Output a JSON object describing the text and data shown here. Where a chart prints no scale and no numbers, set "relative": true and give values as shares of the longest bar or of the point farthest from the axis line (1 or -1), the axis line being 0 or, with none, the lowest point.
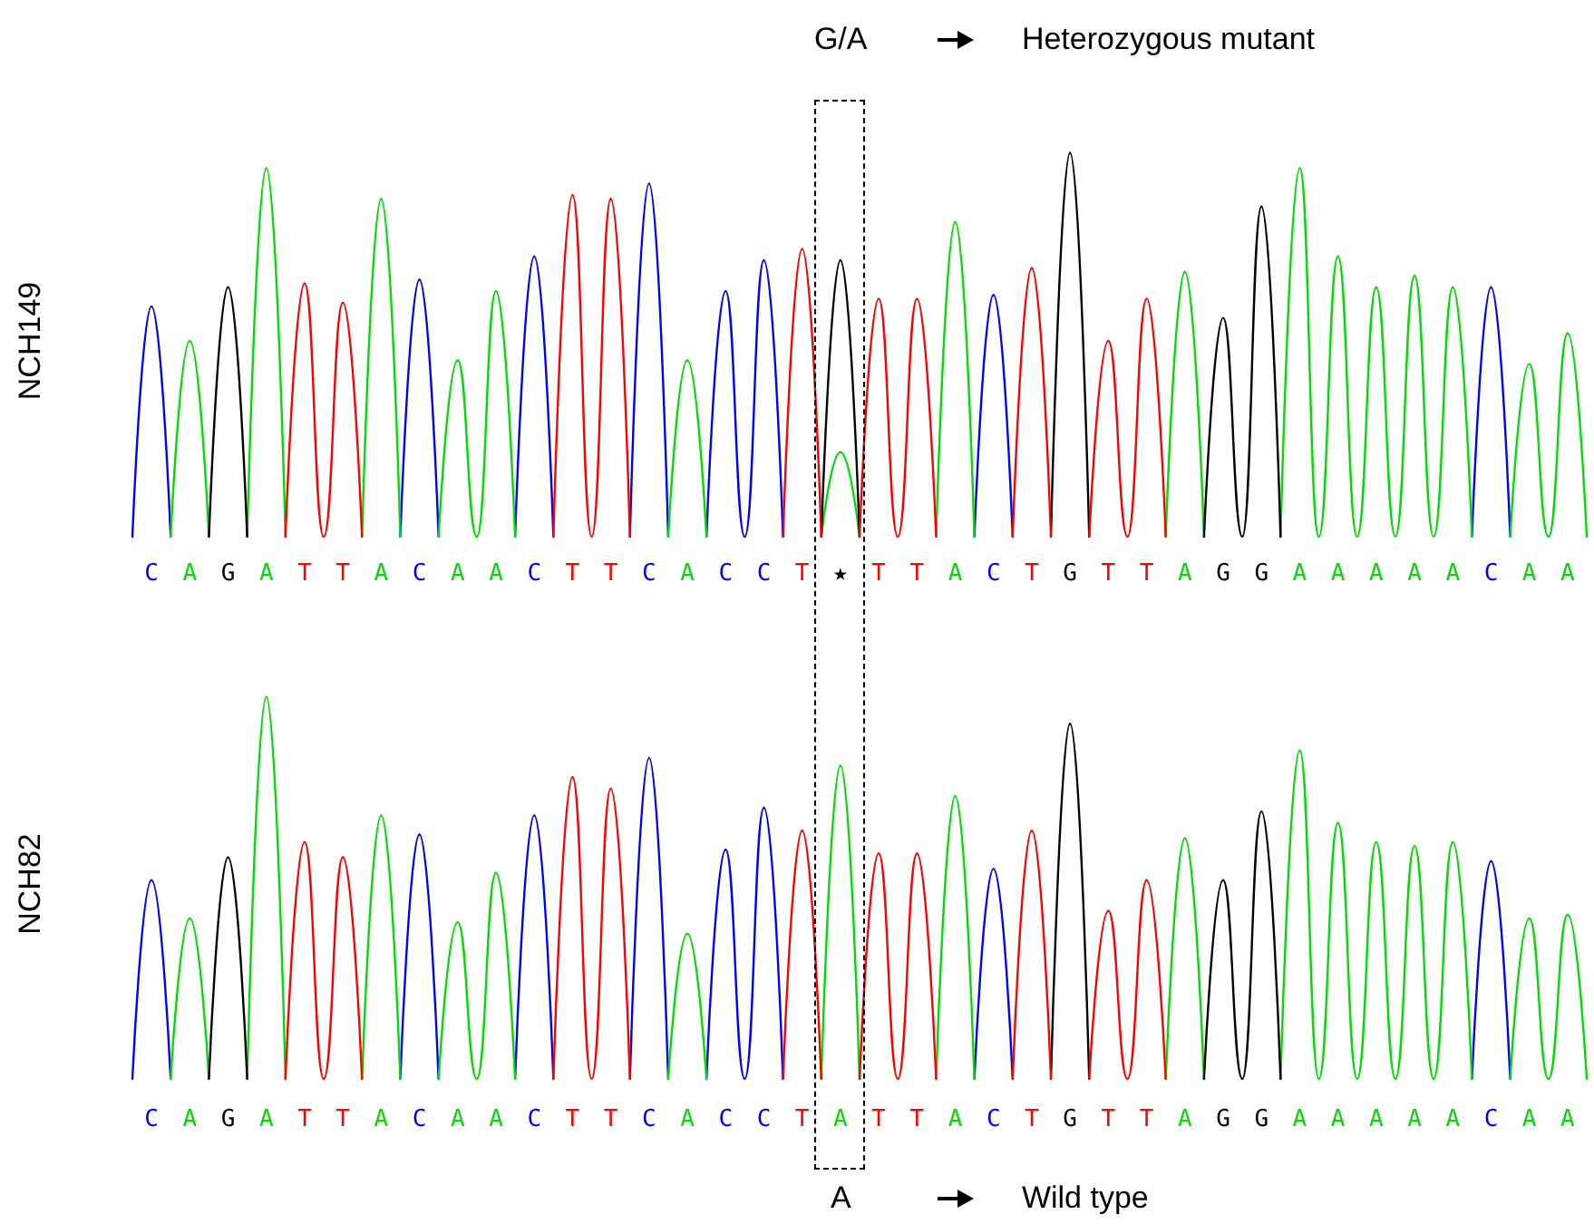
{
  "chart_data": [
    {
      "type": "line",
      "ylabel": "NCH149",
      "relative": true,
      "tick_labels": "x",
      "marker": "none",
      "line_style": "solid",
      "categories": [
        null,
        "C",
        null,
        "A",
        null,
        "G",
        null,
        "A",
        null,
        "T",
        null,
        "T",
        null,
        "A",
        null,
        "C",
        null,
        "A",
        null,
        "A",
        null,
        "C",
        null,
        "T",
        null,
        "T",
        null,
        "C",
        null,
        "A",
        null,
        "C",
        null,
        "C",
        null,
        "T",
        null,
        "★",
        null,
        "T",
        null,
        "T",
        null,
        "A",
        null,
        "C",
        null,
        "T",
        null,
        "G",
        null,
        "T",
        null,
        "T",
        null,
        "A",
        null,
        "G",
        null,
        "G",
        null,
        "A",
        null,
        "A",
        null,
        "A",
        null,
        "A",
        null,
        "A",
        null,
        "C",
        null,
        "A",
        null,
        "A",
        null
      ],
      "annotations": [
        "G/A",
        "Heterozygous mutant"
      ],
      "series": [
        {
          "color": "#0000ff",
          "values": [
            0,
            0.6,
            0,
            null,
            null,
            null,
            null,
            null,
            null,
            null,
            null,
            null,
            null,
            null,
            0,
            0.67,
            0,
            null,
            null,
            null,
            0,
            0.73,
            0,
            null,
            null,
            null,
            0,
            0.92,
            0,
            null,
            0,
            0.64,
            0,
            0.72,
            0,
            null,
            null,
            null,
            null,
            null,
            null,
            null,
            null,
            null,
            0,
            0.63,
            0,
            null,
            null,
            null,
            null,
            null,
            null,
            null,
            null,
            null,
            null,
            null,
            null,
            null,
            null,
            null,
            null,
            null,
            null,
            null,
            null,
            null,
            null,
            null,
            0,
            0.65,
            0,
            null,
            null,
            null,
            null
          ]
        },
        {
          "color": "#00dd00",
          "values": [
            null,
            null,
            0,
            0.51,
            0,
            null,
            0,
            0.96,
            0,
            null,
            null,
            null,
            0,
            0.88,
            0,
            null,
            0,
            0.46,
            0,
            0.64,
            0,
            null,
            null,
            null,
            null,
            null,
            null,
            null,
            0,
            0.46,
            0,
            null,
            null,
            null,
            null,
            null,
            0,
            0.22,
            0,
            null,
            null,
            null,
            0,
            0.82,
            0,
            null,
            null,
            null,
            null,
            null,
            null,
            null,
            null,
            null,
            0,
            0.69,
            0,
            null,
            null,
            null,
            0,
            0.96,
            0,
            0.73,
            0,
            0.65,
            0,
            0.68,
            0,
            0.65,
            0,
            null,
            0,
            0.45,
            0,
            0.53,
            0
          ]
        },
        {
          "color": "#000000",
          "values": [
            null,
            null,
            null,
            null,
            0,
            0.65,
            0,
            null,
            null,
            null,
            null,
            null,
            null,
            null,
            null,
            null,
            null,
            null,
            null,
            null,
            null,
            null,
            null,
            null,
            null,
            null,
            null,
            null,
            null,
            null,
            null,
            null,
            null,
            null,
            null,
            null,
            0,
            0.72,
            0,
            null,
            null,
            null,
            null,
            null,
            null,
            null,
            null,
            null,
            0,
            1,
            0,
            null,
            null,
            null,
            null,
            null,
            0,
            0.57,
            0,
            0.86,
            0,
            null,
            null,
            null,
            null,
            null,
            null,
            null,
            null,
            null,
            null,
            null,
            null,
            null,
            null,
            null,
            null
          ]
        },
        {
          "color": "#ff0000",
          "values": [
            null,
            null,
            null,
            null,
            null,
            null,
            null,
            null,
            0,
            0.66,
            0,
            0.61,
            0,
            null,
            null,
            null,
            null,
            null,
            null,
            null,
            null,
            null,
            0,
            0.89,
            0,
            0.88,
            0,
            null,
            null,
            null,
            null,
            null,
            null,
            null,
            0,
            0.75,
            0,
            null,
            0,
            0.62,
            0,
            0.62,
            0,
            null,
            null,
            null,
            0,
            0.7,
            0,
            null,
            0,
            0.51,
            0,
            0.62,
            0,
            null,
            null,
            null,
            null,
            null,
            null,
            null,
            null,
            null,
            null,
            null,
            null,
            null,
            null,
            null,
            null,
            null,
            null,
            null,
            null,
            null,
            null
          ]
        }
      ]
    },
    {
      "type": "line",
      "ylabel": "NCH82",
      "relative": true,
      "tick_labels": "x",
      "marker": "none",
      "line_style": "solid",
      "categories": [
        null,
        "C",
        null,
        "A",
        null,
        "G",
        null,
        "A",
        null,
        "T",
        null,
        "T",
        null,
        "A",
        null,
        "C",
        null,
        "A",
        null,
        "A",
        null,
        "C",
        null,
        "T",
        null,
        "T",
        null,
        "C",
        null,
        "A",
        null,
        "C",
        null,
        "C",
        null,
        "T",
        null,
        "A",
        null,
        "T",
        null,
        "T",
        null,
        "A",
        null,
        "C",
        null,
        "T",
        null,
        "G",
        null,
        "T",
        null,
        "T",
        null,
        "A",
        null,
        "G",
        null,
        "G",
        null,
        "A",
        null,
        "A",
        null,
        "A",
        null,
        "A",
        null,
        "A",
        null,
        "C",
        null,
        "A",
        null,
        "A",
        null
      ],
      "annotations": [
        "A",
        "Wild type"
      ],
      "series": [
        {
          "color": "#0000ff",
          "values": [
            0,
            0.52,
            0,
            null,
            null,
            null,
            null,
            null,
            null,
            null,
            null,
            null,
            null,
            null,
            0,
            0.64,
            0,
            null,
            null,
            null,
            0,
            0.69,
            0,
            null,
            null,
            null,
            0,
            0.84,
            0,
            null,
            0,
            0.6,
            0,
            0.71,
            0,
            null,
            null,
            null,
            null,
            null,
            null,
            null,
            null,
            null,
            0,
            0.55,
            0,
            null,
            null,
            null,
            null,
            null,
            null,
            null,
            null,
            null,
            null,
            null,
            null,
            null,
            null,
            null,
            null,
            null,
            null,
            null,
            null,
            null,
            null,
            null,
            0,
            0.57,
            0,
            null,
            null,
            null,
            null
          ]
        },
        {
          "color": "#00dd00",
          "values": [
            null,
            null,
            0,
            0.42,
            0,
            null,
            0,
            1,
            0,
            null,
            null,
            null,
            0,
            0.69,
            0,
            null,
            0,
            0.41,
            0,
            0.54,
            0,
            null,
            null,
            null,
            null,
            null,
            null,
            null,
            0,
            0.38,
            0,
            null,
            null,
            null,
            null,
            null,
            0,
            0.82,
            0,
            null,
            null,
            null,
            0,
            0.74,
            0,
            null,
            null,
            null,
            null,
            null,
            null,
            null,
            null,
            null,
            0,
            0.63,
            0,
            null,
            null,
            null,
            0,
            0.86,
            0,
            0.67,
            0,
            0.62,
            0,
            0.61,
            0,
            0.62,
            0,
            null,
            0,
            0.42,
            0,
            0.43,
            0
          ]
        },
        {
          "color": "#000000",
          "values": [
            null,
            null,
            null,
            null,
            0,
            0.58,
            0,
            null,
            null,
            null,
            null,
            null,
            null,
            null,
            null,
            null,
            null,
            null,
            null,
            null,
            null,
            null,
            null,
            null,
            null,
            null,
            null,
            null,
            null,
            null,
            null,
            null,
            null,
            null,
            null,
            null,
            null,
            null,
            null,
            null,
            null,
            null,
            null,
            null,
            null,
            null,
            null,
            null,
            0,
            0.93,
            0,
            null,
            null,
            null,
            null,
            null,
            0,
            0.52,
            0,
            0.7,
            0,
            null,
            null,
            null,
            null,
            null,
            null,
            null,
            null,
            null,
            null,
            null,
            null,
            null,
            null,
            null,
            null
          ]
        },
        {
          "color": "#ff0000",
          "values": [
            null,
            null,
            null,
            null,
            null,
            null,
            null,
            null,
            0,
            0.62,
            0,
            0.58,
            0,
            null,
            null,
            null,
            null,
            null,
            null,
            null,
            null,
            null,
            0,
            0.79,
            0,
            0.76,
            0,
            null,
            null,
            null,
            null,
            null,
            null,
            null,
            0,
            0.65,
            0,
            null,
            0,
            0.59,
            0,
            0.59,
            0,
            null,
            null,
            null,
            0,
            0.65,
            0,
            null,
            0,
            0.44,
            0,
            0.52,
            0,
            null,
            null,
            null,
            null,
            null,
            null,
            null,
            null,
            null,
            null,
            null,
            null,
            null,
            null,
            null,
            null,
            null,
            null,
            null,
            null,
            null,
            null
          ]
        }
      ]
    }
  ]
}
